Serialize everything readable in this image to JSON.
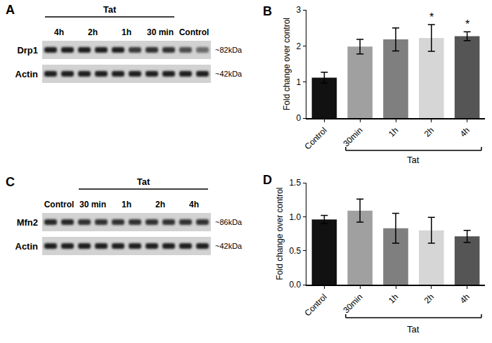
{
  "chart_data": [
    {
      "type": "bar",
      "panel": "B",
      "categories": [
        "Control",
        "30min",
        "1h",
        "2h",
        "4h"
      ],
      "values": [
        1.12,
        1.98,
        2.18,
        2.22,
        2.27
      ],
      "errors": [
        0.15,
        0.2,
        0.32,
        0.37,
        0.12
      ],
      "colors": [
        "#111111",
        "#a0a0a0",
        "#7f7f7f",
        "#d6d6d6",
        "#555555"
      ],
      "ylabel": "Fold change over control",
      "ylim": [
        0,
        3
      ],
      "yticks": [
        0,
        1,
        2,
        3
      ],
      "grid": false,
      "annotations": [
        {
          "text": "*",
          "x": "2h"
        },
        {
          "text": "*",
          "x": "4h"
        }
      ],
      "group": {
        "text": "Tat",
        "from": "30min",
        "to": "4h"
      }
    },
    {
      "type": "bar",
      "panel": "D",
      "categories": [
        "Control",
        "30min",
        "1h",
        "2h",
        "4h"
      ],
      "values": [
        0.96,
        1.09,
        0.83,
        0.8,
        0.71
      ],
      "errors": [
        0.06,
        0.17,
        0.22,
        0.19,
        0.09
      ],
      "colors": [
        "#111111",
        "#a0a0a0",
        "#7f7f7f",
        "#d6d6d6",
        "#555555"
      ],
      "ylabel": "Fold change over control",
      "ylim": [
        0,
        1.5
      ],
      "yticks": [
        {
          "value": 0,
          "label": "0.0"
        },
        {
          "value": 0.5,
          "label": "0.5"
        },
        {
          "value": 1,
          "label": "1.0"
        },
        {
          "value": 1.5,
          "label": "1.5"
        }
      ],
      "grid": false,
      "annotations": [],
      "group": {
        "text": "Tat",
        "from": "30min",
        "to": "4h"
      }
    }
  ],
  "blots": [
    {
      "panel": "A",
      "lanes": [
        "4h",
        "2h",
        "1h",
        "30 min",
        "Control"
      ],
      "group": {
        "text": "Tat",
        "from": "4h",
        "to": "30 min"
      },
      "rows": [
        {
          "protein": "Drp1",
          "size": "~82kDa"
        },
        {
          "protein": "Actin",
          "size": "~42kDa"
        }
      ]
    },
    {
      "panel": "C",
      "lanes": [
        "Control",
        "30 min",
        "1h",
        "2h",
        "4h"
      ],
      "group": {
        "text": "Tat",
        "from": "30 min",
        "to": "4h"
      },
      "rows": [
        {
          "protein": "Mfn2",
          "size": "~86kDa"
        },
        {
          "protein": "Actin",
          "size": "~42kDa"
        }
      ]
    }
  ]
}
